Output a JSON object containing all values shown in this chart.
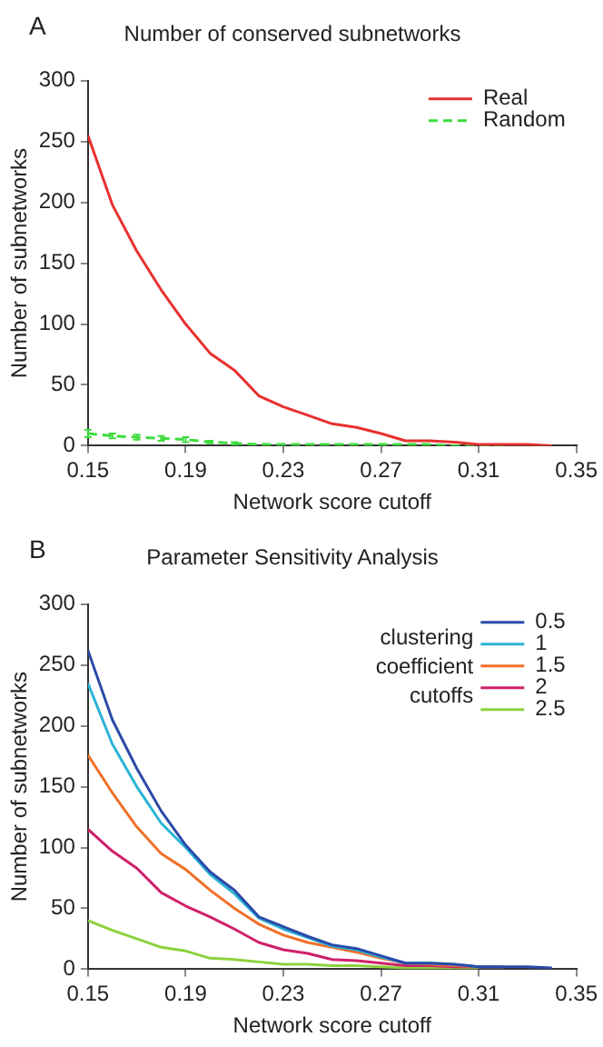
{
  "chart_data": [
    {
      "type": "line",
      "title": "Number of conserved subnetworks",
      "xlabel": "Network score cutoff",
      "ylabel": "Number of subnetworks",
      "annotations": [
        "A"
      ],
      "x": [
        0.15,
        0.16,
        0.17,
        0.18,
        0.19,
        0.2,
        0.21,
        0.22,
        0.23,
        0.24,
        0.25,
        0.26,
        0.27,
        0.28,
        0.29,
        0.3,
        0.31,
        0.32,
        0.33,
        0.34
      ],
      "series": [
        {
          "name": "Real",
          "color": "#e8312f",
          "line_style": "solid",
          "values": [
            255,
            198,
            160,
            128,
            100,
            76,
            62,
            41,
            32,
            25,
            18,
            15,
            10,
            4,
            4,
            3,
            1,
            1,
            1,
            0
          ]
        },
        {
          "name": "Random",
          "color": "#3ddc3d",
          "line_style": "dashed",
          "values": [
            10,
            8,
            7,
            6,
            5,
            3,
            2,
            1,
            1,
            1,
            1,
            1,
            1,
            1,
            1,
            0,
            0,
            0,
            null,
            null
          ],
          "errors": [
            3,
            2,
            2,
            2,
            2,
            1,
            1,
            null,
            null,
            null,
            null,
            null,
            null,
            null,
            null,
            null,
            null,
            null,
            null,
            null
          ]
        }
      ],
      "xlim": [
        0.15,
        0.35
      ],
      "xticks": [
        0.15,
        0.19,
        0.23,
        0.27,
        0.31,
        0.35
      ],
      "ylim": [
        0,
        300
      ],
      "yticks": [
        0,
        50,
        100,
        150,
        200,
        250,
        300
      ],
      "grid": false,
      "legend": "top right",
      "marker": "none"
    },
    {
      "type": "line",
      "title": "Parameter Sensitivity Analysis",
      "xlabel": "Network score cutoff",
      "ylabel": "Number of subnetworks",
      "legend_title": "clustering coefficient cutoffs",
      "annotations": [
        "B"
      ],
      "x": [
        0.15,
        0.16,
        0.17,
        0.18,
        0.19,
        0.2,
        0.21,
        0.22,
        0.23,
        0.24,
        0.25,
        0.26,
        0.27,
        0.28,
        0.29,
        0.3,
        0.31,
        0.32,
        0.33,
        0.34
      ],
      "series": [
        {
          "name": "0.5",
          "color": "#2b4aa8",
          "values": [
            262,
            205,
            165,
            130,
            102,
            80,
            65,
            43,
            35,
            27,
            20,
            17,
            11,
            5,
            5,
            4,
            2,
            2,
            2,
            1
          ]
        },
        {
          "name": "1",
          "color": "#2ab4d6",
          "values": [
            235,
            185,
            150,
            120,
            100,
            78,
            62,
            42,
            33,
            26,
            19,
            16,
            10,
            5,
            5,
            4,
            2,
            2,
            null,
            null
          ]
        },
        {
          "name": "1.5",
          "color": "#f07028",
          "values": [
            176,
            145,
            117,
            95,
            82,
            65,
            50,
            37,
            28,
            22,
            18,
            14,
            9,
            5,
            4,
            3,
            2,
            2,
            null,
            null
          ]
        },
        {
          "name": "2",
          "color": "#d0206a",
          "values": [
            115,
            97,
            83,
            63,
            52,
            43,
            33,
            22,
            16,
            13,
            8,
            7,
            5,
            3,
            3,
            2,
            2,
            2,
            null,
            null
          ]
        },
        {
          "name": "2.5",
          "color": "#8cd23c",
          "values": [
            40,
            32,
            25,
            18,
            15,
            9,
            8,
            6,
            4,
            4,
            3,
            3,
            2,
            1,
            1,
            1,
            1,
            null,
            null,
            null
          ]
        }
      ],
      "xlim": [
        0.15,
        0.35
      ],
      "xticks": [
        0.15,
        0.19,
        0.23,
        0.27,
        0.31,
        0.35
      ],
      "ylim": [
        0,
        300
      ],
      "yticks": [
        0,
        50,
        100,
        150,
        200,
        250,
        300
      ],
      "grid": false,
      "legend": "top right",
      "marker": "none"
    }
  ]
}
